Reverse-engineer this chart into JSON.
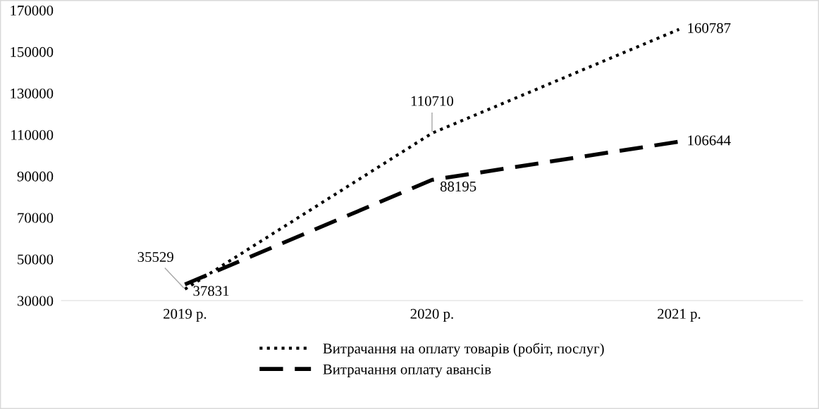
{
  "chart_data": {
    "type": "line",
    "categories": [
      "2019 р.",
      "2020 р.",
      "2021 р."
    ],
    "series": [
      {
        "name": "Витрачання на оплату товарів (робіт, послуг)",
        "color": "#000000",
        "line_style": "dotted",
        "values": [
          35529,
          110710,
          160787
        ]
      },
      {
        "name": "Витрачання оплату авансів",
        "color": "#000000",
        "line_style": "dashed",
        "values": [
          37831,
          88195,
          106644
        ]
      }
    ],
    "ylim": [
      30000,
      170000
    ],
    "yticks": [
      30000,
      50000,
      70000,
      90000,
      110000,
      130000,
      150000,
      170000
    ],
    "grid": false,
    "legend": "bottom",
    "marker": "none",
    "data_labels": true
  }
}
